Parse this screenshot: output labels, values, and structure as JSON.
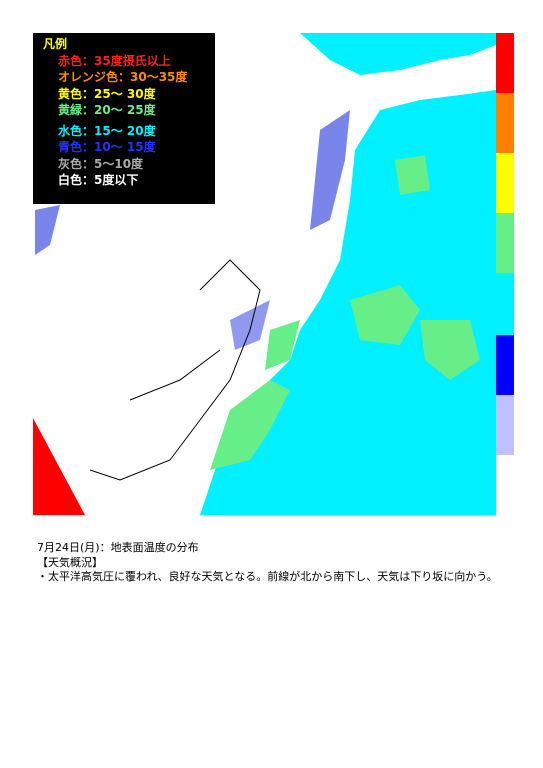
{
  "legend": {
    "title": "凡例",
    "items": [
      "赤色：35度摂氏以上",
      "オレンジ色：30～35度",
      "黄色：25～ 30度",
      "黄緑：20～ 25度",
      "水色：15～ 20度",
      "青色：10～ 15度",
      "灰色：5～10度",
      "白色：5度以下"
    ]
  },
  "caption": {
    "title": "7月24日(月)：地表面温度の分布",
    "section": "【天気概況】",
    "body": "・太平洋高気圧に覆われ、良好な天気となる。前線が北から南下し、天気は下り坂に向かう。"
  }
}
